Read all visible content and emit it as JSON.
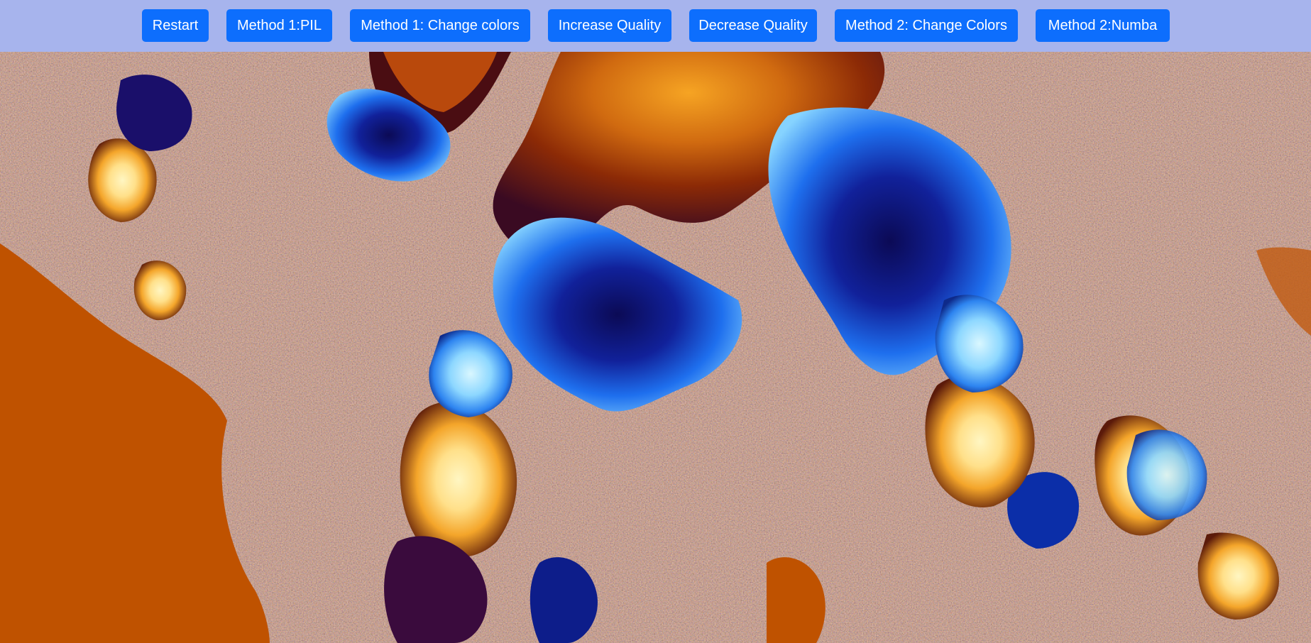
{
  "toolbar": {
    "buttons": [
      {
        "label": "Restart"
      },
      {
        "label": "Method 1:PIL"
      },
      {
        "label": "Method 1: Change colors"
      },
      {
        "label": "Increase Quality"
      },
      {
        "label": "Decrease Quality"
      },
      {
        "label": "Method 2: Change Colors"
      },
      {
        "label": "Method 2:Numba"
      }
    ],
    "button_color": "#0d6efd",
    "bar_color": "#a7b4ed"
  },
  "fractal": {
    "palette": {
      "interior": "#bf5200",
      "deep_blue": "#12106e",
      "blue": "#1f6ff0",
      "light_blue": "#8fd6ff",
      "cream": "#ffe9a3",
      "orange": "#f0a01e",
      "dark_red": "#5a1206"
    }
  }
}
